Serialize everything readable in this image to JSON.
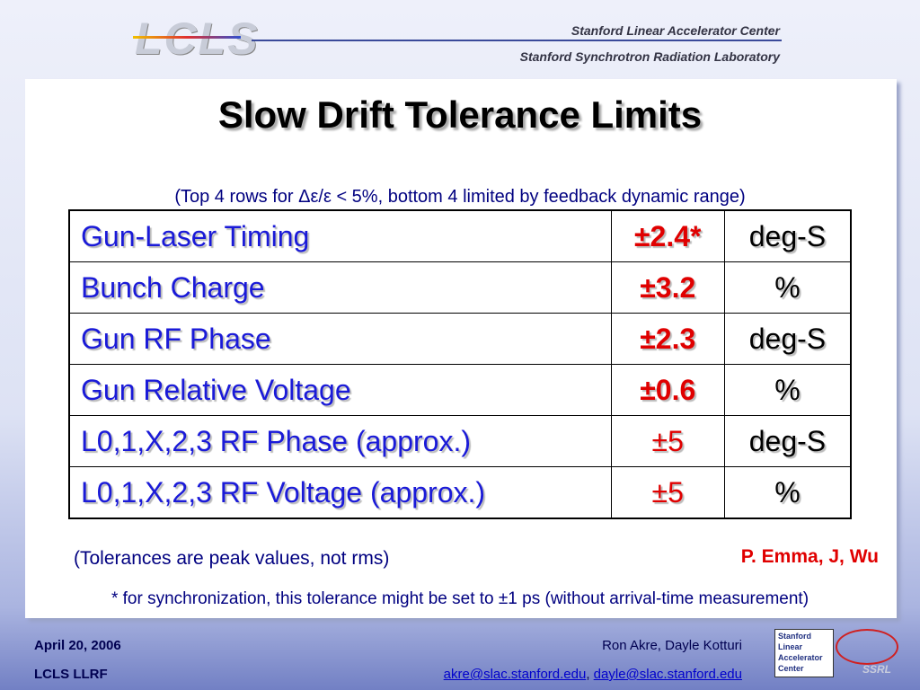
{
  "header": {
    "logo": "LCLS",
    "org1": "Stanford Linear Accelerator Center",
    "org2": "Stanford Synchrotron Radiation Laboratory"
  },
  "title": "Slow Drift Tolerance Limits",
  "subtitle": "(Top 4 rows for Δε/ε < 5%, bottom 4 limited by feedback dynamic range)",
  "table": {
    "rows": [
      [
        "Gun-Laser Timing",
        "±2.4*",
        "deg-S"
      ],
      [
        "Bunch Charge",
        "±3.2",
        "%"
      ],
      [
        "Gun RF Phase",
        "±2.3",
        "deg-S"
      ],
      [
        "Gun Relative Voltage",
        "±0.6",
        "%"
      ],
      [
        "L0,1,X,2,3 RF Phase (approx.)",
        "±5",
        "deg-S"
      ],
      [
        "L0,1,X,2,3 RF Voltage (approx.)",
        "±5",
        "%"
      ]
    ]
  },
  "note": "(Tolerances are peak values, not rms)",
  "authors": "P. Emma, J, Wu",
  "footnote": "* for synchronization, this tolerance might be set to ±1 ps (without arrival-time measurement)",
  "footer": {
    "date": "April 20, 2006",
    "project": "LCLS LLRF",
    "presenters": "Ron Akre, Dayle Kotturi",
    "email1": "akre@slac.stanford.edu",
    "separator": ",",
    "email2": "dayle@slac.stanford.edu",
    "logo_lines": [
      "Stanford",
      "Linear",
      "Accelerator",
      "Center"
    ],
    "ssrl": "SSRL"
  }
}
